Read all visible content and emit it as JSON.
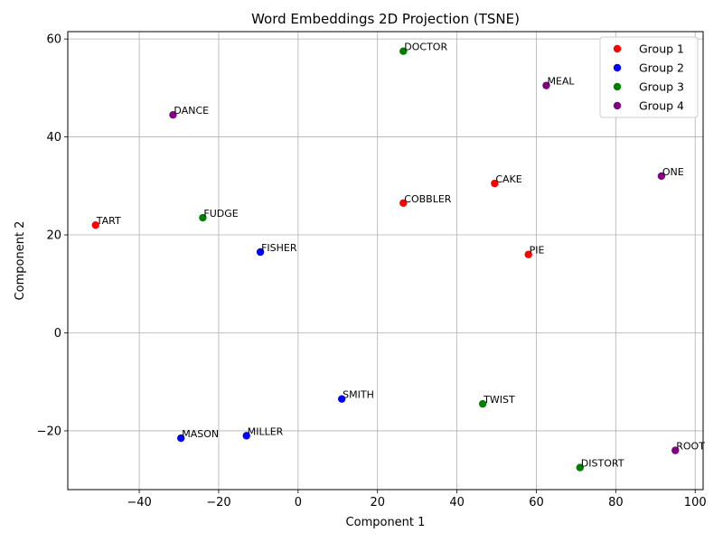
{
  "chart_data": {
    "type": "scatter",
    "title": "Word Embeddings 2D Projection (TSNE)",
    "xlabel": "Component 1",
    "ylabel": "Component 2",
    "xlim": [
      -58,
      102
    ],
    "ylim": [
      -32,
      61.5
    ],
    "xticks": [
      -40,
      -20,
      0,
      20,
      40,
      60,
      80,
      100
    ],
    "yticks": [
      -20,
      0,
      20,
      40,
      60
    ],
    "grid": true,
    "legend_position": "top-right",
    "series": [
      {
        "name": "Group 1",
        "color": "#ff0000",
        "points": [
          {
            "label": "TART",
            "x": -51,
            "y": 22
          },
          {
            "label": "COBBLER",
            "x": 26.5,
            "y": 26.5
          },
          {
            "label": "CAKE",
            "x": 49.5,
            "y": 30.5
          },
          {
            "label": "PIE",
            "x": 58,
            "y": 16
          }
        ]
      },
      {
        "name": "Group 2",
        "color": "#0000ff",
        "points": [
          {
            "label": "FISHER",
            "x": -9.5,
            "y": 16.5
          },
          {
            "label": "SMITH",
            "x": 11,
            "y": -13.5
          },
          {
            "label": "MASON",
            "x": -29.5,
            "y": -21.5
          },
          {
            "label": "MILLER",
            "x": -13,
            "y": -21
          }
        ]
      },
      {
        "name": "Group 3",
        "color": "#008000",
        "points": [
          {
            "label": "DOCTOR",
            "x": 26.5,
            "y": 57.5
          },
          {
            "label": "FUDGE",
            "x": -24,
            "y": 23.5
          },
          {
            "label": "TWIST",
            "x": 46.5,
            "y": -14.5
          },
          {
            "label": "DISTORT",
            "x": 71,
            "y": -27.5
          }
        ]
      },
      {
        "name": "Group 4",
        "color": "#800080",
        "points": [
          {
            "label": "DANCE",
            "x": -31.5,
            "y": 44.5
          },
          {
            "label": "MEAL",
            "x": 62.5,
            "y": 50.5
          },
          {
            "label": "ONE",
            "x": 91.5,
            "y": 32
          },
          {
            "label": "ROOT",
            "x": 95,
            "y": -24
          }
        ]
      }
    ]
  }
}
